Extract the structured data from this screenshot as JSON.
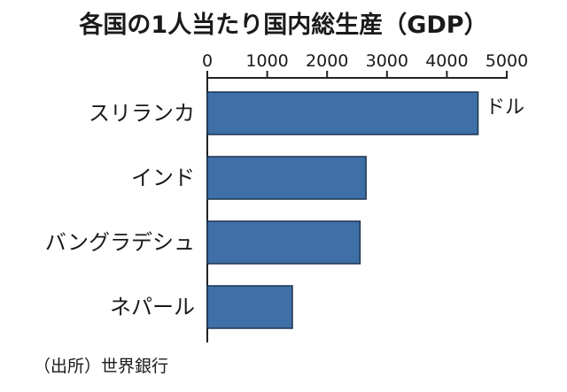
{
  "chart_data": {
    "type": "bar",
    "orientation": "horizontal",
    "title": "各国の1人当たり国内総生産（GDP）",
    "unit_label": "ドル",
    "source": "（出所）世界銀行",
    "categories": [
      "スリランカ",
      "インド",
      "バングラデシュ",
      "ネパール"
    ],
    "values": [
      4520,
      2650,
      2550,
      1420
    ],
    "xlim": [
      0,
      5000
    ],
    "ticks": [
      0,
      1000,
      2000,
      3000,
      4000,
      5000
    ],
    "tick_labels": [
      "0",
      "1000",
      "2000",
      "3000",
      "4000",
      "5000"
    ],
    "axis_position": "top",
    "grid": false,
    "legend": false,
    "bar_color": "#3e6fa6",
    "bar_edge_color": "#1e3550"
  }
}
